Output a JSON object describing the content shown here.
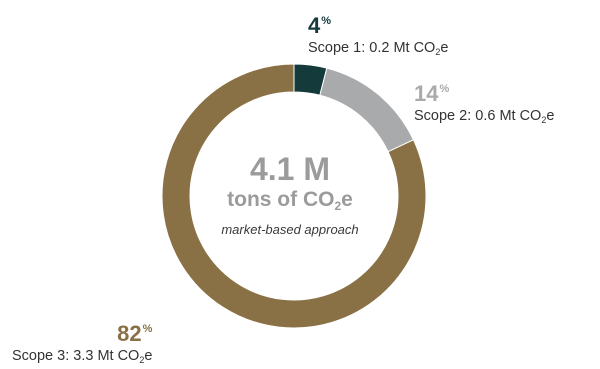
{
  "chart_data": {
    "type": "pie",
    "variant": "donut",
    "slices": [
      {
        "percent": 4,
        "pct_text": "4",
        "label_prefix": "Scope 1: 0.2 Mt CO",
        "label_subscript": "2",
        "label_suffix": "e",
        "value_mt": 0.2,
        "color": "#153a3b"
      },
      {
        "percent": 14,
        "pct_text": "14",
        "label_prefix": "Scope 2: 0.6 Mt CO",
        "label_subscript": "2",
        "label_suffix": "e",
        "value_mt": 0.6,
        "color": "#a9aaac"
      },
      {
        "percent": 82,
        "pct_text": "82",
        "label_prefix": "Scope 3: 3.3 Mt CO",
        "label_subscript": "2",
        "label_suffix": "e",
        "value_mt": 3.3,
        "color": "#8a7045"
      }
    ],
    "percent_symbol": "%",
    "center": {
      "total": "4.1 M",
      "units_prefix": "tons of CO",
      "units_subscript": "2",
      "units_suffix": "e",
      "approach": "market-based approach"
    }
  }
}
